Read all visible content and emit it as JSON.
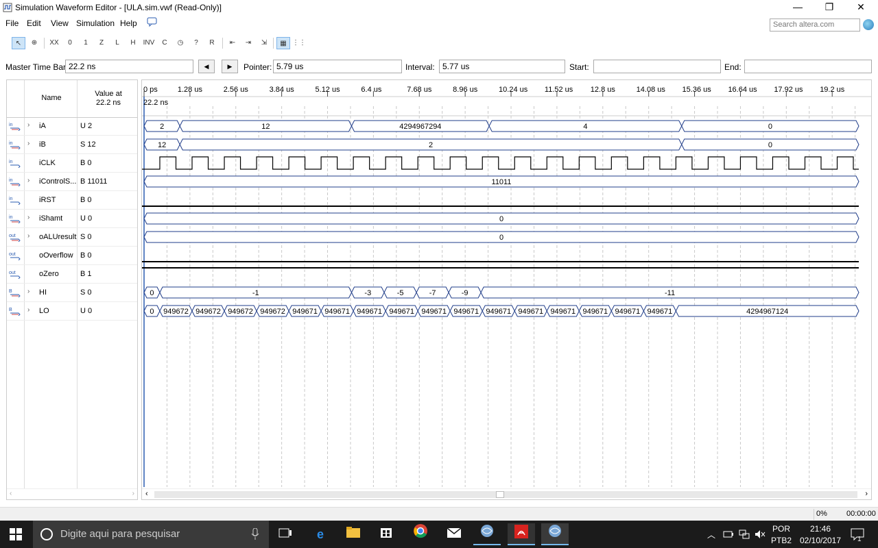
{
  "window": {
    "title": "Simulation Waveform Editor - [ULA.sim.vwf (Read-Only)]",
    "minimize": "—",
    "restore": "❐",
    "close": "✕"
  },
  "menu": [
    "File",
    "Edit",
    "View",
    "Simulation",
    "Help"
  ],
  "search": {
    "placeholder": "Search altera.com"
  },
  "toolbar": {
    "icons": [
      "selection-tool",
      "zoom-tool",
      "forcing-unknown",
      "forcing-low",
      "forcing-high",
      "high-impedance",
      "weak-low",
      "weak-high",
      "invert",
      "count-value",
      "clock",
      "random",
      "overwrite",
      "snap-to-grid",
      "show-grid"
    ]
  },
  "timebar": {
    "master_label": "Master Time Bar:",
    "master_value": "22.2 ns",
    "prev": "◀",
    "next": "▶",
    "pointer_label": "Pointer:",
    "pointer_value": "5.79 us",
    "interval_label": "Interval:",
    "interval_value": "5.77 us",
    "start_label": "Start:",
    "start_value": "",
    "end_label": "End:",
    "end_value": ""
  },
  "columns": {
    "name": "Name",
    "value": "Value at\n22.2 ns"
  },
  "signals": [
    {
      "name": "iA",
      "value": "U 2",
      "dir": "in",
      "bus": true
    },
    {
      "name": "iB",
      "value": "S 12",
      "dir": "in",
      "bus": true
    },
    {
      "name": "iCLK",
      "value": "B 0",
      "dir": "in",
      "bus": false
    },
    {
      "name": "iControlS...",
      "value": "B 11011",
      "dir": "in",
      "bus": true
    },
    {
      "name": "iRST",
      "value": "B 0",
      "dir": "in",
      "bus": false
    },
    {
      "name": "iShamt",
      "value": "U 0",
      "dir": "in",
      "bus": true
    },
    {
      "name": "oALUresult",
      "value": "S 0",
      "dir": "out",
      "bus": true
    },
    {
      "name": "oOverflow",
      "value": "B 0",
      "dir": "out",
      "bus": false
    },
    {
      "name": "oZero",
      "value": "B 1",
      "dir": "out",
      "bus": false
    },
    {
      "name": "HI",
      "value": "S 0",
      "dir": "bury",
      "bus": true
    },
    {
      "name": "LO",
      "value": "U 0",
      "dir": "bury",
      "bus": true
    }
  ],
  "ruler": {
    "ticks": [
      "0 ps",
      "1.28 us",
      "2.56 us",
      "3.84 us",
      "5.12 us",
      "6.4 us",
      "7.68 us",
      "8.96 us",
      "10.24 us",
      "11.52 us",
      "12.8 us",
      "14.08 us",
      "15.36 us",
      "16.64 us",
      "17.92 us",
      "19.2 us"
    ],
    "time_bar_label": "22.2 ns"
  },
  "waves": {
    "iA": [
      {
        "t0": 0,
        "t1": 1.0,
        "v": "2"
      },
      {
        "t0": 1.0,
        "t1": 5.79,
        "v": "12"
      },
      {
        "t0": 5.79,
        "t1": 9.63,
        "v": "4294967294"
      },
      {
        "t0": 9.63,
        "t1": 15.0,
        "v": "4"
      },
      {
        "t0": 15.0,
        "t1": 20.0,
        "v": "0"
      }
    ],
    "iB": [
      {
        "t0": 0,
        "t1": 1.0,
        "v": "12"
      },
      {
        "t0": 1.0,
        "t1": 15.0,
        "v": "2"
      },
      {
        "t0": 15.0,
        "t1": 20.0,
        "v": "0"
      }
    ],
    "iControlS": [
      {
        "t0": 0,
        "t1": 20.0,
        "v": "11011"
      }
    ],
    "iShamt": [
      {
        "t0": 0,
        "t1": 20.0,
        "v": "0"
      }
    ],
    "oALUresult": [
      {
        "t0": 0,
        "t1": 20.0,
        "v": "0"
      }
    ],
    "HI": [
      {
        "t0": 0,
        "t1": 0.44,
        "v": "0"
      },
      {
        "t0": 0.44,
        "t1": 5.79,
        "v": "-1"
      },
      {
        "t0": 5.79,
        "t1": 6.7,
        "v": "-3"
      },
      {
        "t0": 6.7,
        "t1": 7.6,
        "v": "-5"
      },
      {
        "t0": 7.6,
        "t1": 8.5,
        "v": "-7"
      },
      {
        "t0": 8.5,
        "t1": 9.4,
        "v": "-9"
      },
      {
        "t0": 9.4,
        "t1": 20.0,
        "v": "-11"
      }
    ],
    "LO": [
      {
        "t0": 0,
        "t1": 0.44,
        "v": "0"
      },
      {
        "t0": 0.44,
        "t1": 1.34,
        "v": "949672"
      },
      {
        "t0": 1.34,
        "t1": 2.24,
        "v": "949672"
      },
      {
        "t0": 2.24,
        "t1": 3.14,
        "v": "949672"
      },
      {
        "t0": 3.14,
        "t1": 4.04,
        "v": "949672"
      },
      {
        "t0": 4.04,
        "t1": 4.94,
        "v": "949671"
      },
      {
        "t0": 4.94,
        "t1": 5.84,
        "v": "949671"
      },
      {
        "t0": 5.84,
        "t1": 6.74,
        "v": "949671"
      },
      {
        "t0": 6.74,
        "t1": 7.64,
        "v": "949671"
      },
      {
        "t0": 7.64,
        "t1": 8.54,
        "v": "949671"
      },
      {
        "t0": 8.54,
        "t1": 9.44,
        "v": "949671"
      },
      {
        "t0": 9.44,
        "t1": 10.34,
        "v": "949671"
      },
      {
        "t0": 10.34,
        "t1": 11.24,
        "v": "949671"
      },
      {
        "t0": 11.24,
        "t1": 12.14,
        "v": "949671"
      },
      {
        "t0": 12.14,
        "t1": 13.04,
        "v": "949671"
      },
      {
        "t0": 13.04,
        "t1": 13.94,
        "v": "949671"
      },
      {
        "t0": 13.94,
        "t1": 14.84,
        "v": "949671"
      },
      {
        "t0": 14.84,
        "t1": 20.0,
        "v": "4294967124"
      }
    ],
    "iCLK": {
      "period_us": 0.9,
      "first_rise_us": 0.44
    },
    "iRST": 0,
    "oOverflow": 0,
    "oZero": 1
  },
  "status": {
    "progress": "0%",
    "time": "00:00:00"
  },
  "taskbar": {
    "search": "Digite aqui para pesquisar",
    "lang1": "POR",
    "lang2": "PTB2",
    "clock": "21:46",
    "date": "02/10/2017",
    "notif": "1"
  }
}
